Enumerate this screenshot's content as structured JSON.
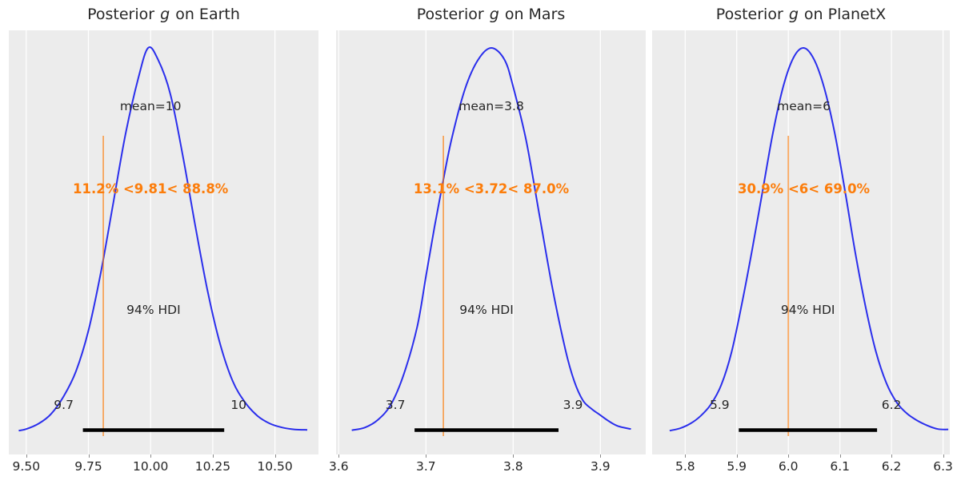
{
  "style": {
    "figure_bg": "#ffffff",
    "plot_bg": "#ececec",
    "grid_color": "#ffffff",
    "curve_color": "#2a2eec",
    "ref_text_color": "#fc7d0b",
    "ref_line_color": "rgba(252,125,11,0.65)",
    "hdi_bar_color": "#000000",
    "text_color": "#262626"
  },
  "chart_data": [
    {
      "type": "line",
      "title": {
        "prefix": "Posterior ",
        "var": "g",
        "suffix": " on Earth",
        "full": "Posterior g on Earth"
      },
      "mean_label": "mean=10",
      "mean_value": 10.0,
      "ref_label": "11.2% <9.81< 88.8%",
      "ref_value": 9.81,
      "ref_pct_below": "11.2%",
      "ref_pct_above": "88.8%",
      "hdi_text": "94% HDI",
      "hdi_low_label": "9.7",
      "hdi_high_label": "10",
      "hdi_bar": [
        9.728,
        10.296
      ],
      "xlim": [
        9.43,
        10.675
      ],
      "xticks": [
        {
          "v": 9.5,
          "label": "9.50"
        },
        {
          "v": 9.75,
          "label": "9.75"
        },
        {
          "v": 10.0,
          "label": "10.00"
        },
        {
          "v": 10.25,
          "label": "10.25"
        },
        {
          "v": 10.5,
          "label": "10.50"
        }
      ],
      "kde": {
        "x": [
          9.47,
          9.5,
          9.55,
          9.6,
          9.65,
          9.7,
          9.75,
          9.8,
          9.85,
          9.9,
          9.95,
          9.99,
          10.03,
          10.08,
          10.13,
          10.18,
          10.23,
          10.28,
          10.33,
          10.38,
          10.43,
          10.48,
          10.53,
          10.58,
          10.63
        ],
        "density": [
          0.012,
          0.016,
          0.03,
          0.055,
          0.1,
          0.165,
          0.27,
          0.42,
          0.6,
          0.78,
          0.92,
          1.0,
          0.97,
          0.88,
          0.72,
          0.54,
          0.37,
          0.235,
          0.14,
          0.085,
          0.05,
          0.03,
          0.02,
          0.015,
          0.014
        ]
      }
    },
    {
      "type": "line",
      "title": {
        "prefix": "Posterior ",
        "var": "g",
        "suffix": " on Mars",
        "full": "Posterior g on Mars"
      },
      "mean_label": "mean=3.8",
      "mean_value": 3.775,
      "ref_label": "13.1% <3.72< 87.0%",
      "ref_value": 3.72,
      "ref_pct_below": "13.1%",
      "ref_pct_above": "87.0%",
      "hdi_text": "94% HDI",
      "hdi_low_label": "3.7",
      "hdi_high_label": "3.9",
      "hdi_bar": [
        3.687,
        3.852
      ],
      "xlim": [
        3.597,
        3.952
      ],
      "xticks": [
        {
          "v": 3.6,
          "label": "3.6"
        },
        {
          "v": 3.7,
          "label": "3.7"
        },
        {
          "v": 3.8,
          "label": "3.8"
        },
        {
          "v": 3.9,
          "label": "3.9"
        }
      ],
      "kde": {
        "x": [
          3.615,
          3.63,
          3.645,
          3.66,
          3.675,
          3.69,
          3.7,
          3.71,
          3.72,
          3.73,
          3.745,
          3.76,
          3.775,
          3.79,
          3.8,
          3.815,
          3.83,
          3.845,
          3.86,
          3.87,
          3.88,
          3.89,
          3.9,
          3.91,
          3.92,
          3.935
        ],
        "density": [
          0.013,
          0.02,
          0.04,
          0.08,
          0.16,
          0.28,
          0.41,
          0.54,
          0.66,
          0.77,
          0.895,
          0.97,
          1.0,
          0.97,
          0.9,
          0.76,
          0.57,
          0.38,
          0.22,
          0.14,
          0.09,
          0.068,
          0.052,
          0.036,
          0.024,
          0.016
        ]
      }
    },
    {
      "type": "line",
      "title": {
        "prefix": "Posterior ",
        "var": "g",
        "suffix": " on PlanetX",
        "full": "Posterior g on PlanetX"
      },
      "mean_label": "mean=6",
      "mean_value": 6.03,
      "ref_label": "30.9% <6< 69.0%",
      "ref_value": 6.0,
      "ref_pct_below": "30.9%",
      "ref_pct_above": "69.0%",
      "hdi_text": "94% HDI",
      "hdi_low_label": "5.9",
      "hdi_high_label": "6.2",
      "hdi_bar": [
        5.904,
        6.172
      ],
      "xlim": [
        5.736,
        6.313
      ],
      "xticks": [
        {
          "v": 5.8,
          "label": "5.8"
        },
        {
          "v": 5.9,
          "label": "5.9"
        },
        {
          "v": 6.0,
          "label": "6.0"
        },
        {
          "v": 6.1,
          "label": "6.1"
        },
        {
          "v": 6.2,
          "label": "6.2"
        },
        {
          "v": 6.3,
          "label": "6.3"
        }
      ],
      "kde": {
        "x": [
          5.77,
          5.79,
          5.81,
          5.83,
          5.85,
          5.87,
          5.89,
          5.91,
          5.93,
          5.95,
          5.97,
          5.99,
          6.01,
          6.03,
          6.05,
          6.07,
          6.09,
          6.11,
          6.13,
          6.15,
          6.17,
          6.19,
          6.21,
          6.23,
          6.25,
          6.27,
          6.29,
          6.31
        ],
        "density": [
          0.012,
          0.018,
          0.03,
          0.05,
          0.08,
          0.13,
          0.215,
          0.34,
          0.48,
          0.63,
          0.78,
          0.9,
          0.975,
          1.0,
          0.97,
          0.895,
          0.78,
          0.63,
          0.47,
          0.33,
          0.215,
          0.135,
          0.085,
          0.056,
          0.038,
          0.025,
          0.016,
          0.015
        ]
      }
    }
  ]
}
